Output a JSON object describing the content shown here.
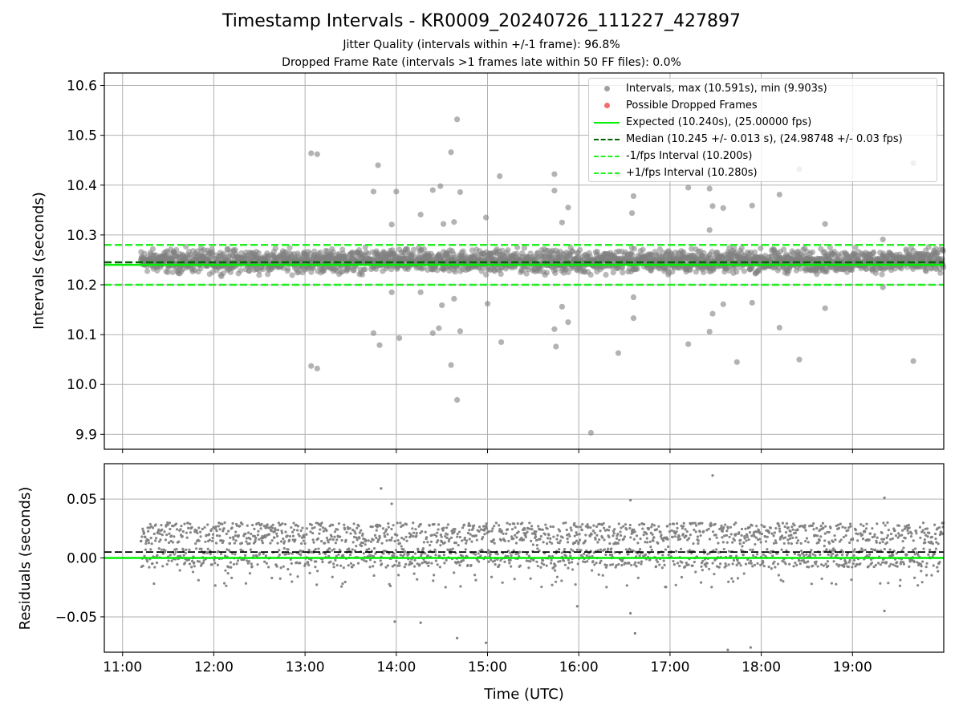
{
  "figure": {
    "title": "Timestamp Intervals - KR0009_20240726_111227_427897",
    "subtitle_1": "Jitter Quality (intervals within +/-1 frame): 96.8%",
    "subtitle_2": "Dropped Frame Rate (intervals >1 frames late within 50 FF files): 0.0%"
  },
  "legend": {
    "intervals": "Intervals, max (10.591s), min (9.903s)",
    "dropped": "Possible Dropped Frames",
    "expected": "Expected (10.240s), (25.00000 fps)",
    "median": "Median (10.245 +/- 0.013 s), (24.98748 +/- 0.03 fps)",
    "minus_fps": "-1/fps Interval (10.200s)",
    "plus_fps": "+1/fps Interval (10.280s)"
  },
  "colors": {
    "points": "#808080",
    "dropped": "#ff4d4d",
    "expected": "#00ee00",
    "median": "#006400",
    "fps_band": "#22ee22",
    "grid": "#b0b0b0"
  },
  "chart_data": [
    {
      "type": "scatter",
      "ylabel": "Intervals (seconds)",
      "xlim": [
        "10:48",
        "20:00"
      ],
      "ylim": [
        9.87,
        10.625
      ],
      "yticks": [
        9.9,
        10.0,
        10.1,
        10.2,
        10.3,
        10.4,
        10.5,
        10.6
      ],
      "ytick_labels": [
        "9.9",
        "10.0",
        "10.1",
        "10.2",
        "10.3",
        "10.4",
        "10.5",
        "10.6"
      ],
      "xticks": [
        "11:00",
        "12:00",
        "13:00",
        "14:00",
        "15:00",
        "16:00",
        "17:00",
        "18:00",
        "19:00"
      ],
      "grid": true,
      "legend_position": "top-right",
      "x_start": "11:12",
      "x_end": "20:00",
      "bulk_range": [
        10.215,
        10.28
      ],
      "reference_lines": {
        "expected": 10.24,
        "median": 10.245,
        "minus_1_fps": 10.2,
        "plus_1_fps": 10.28
      },
      "stats": {
        "max": 10.591,
        "min": 9.903,
        "median": 10.245,
        "std": 0.013
      },
      "outliers": [
        {
          "t": "13:04",
          "y": 10.464
        },
        {
          "t": "13:08",
          "y": 10.462
        },
        {
          "t": "13:04",
          "y": 10.037
        },
        {
          "t": "13:08",
          "y": 10.032
        },
        {
          "t": "13:45",
          "y": 10.387
        },
        {
          "t": "13:48",
          "y": 10.44
        },
        {
          "t": "13:45",
          "y": 10.103
        },
        {
          "t": "13:49",
          "y": 10.079
        },
        {
          "t": "13:57",
          "y": 10.321
        },
        {
          "t": "14:00",
          "y": 10.387
        },
        {
          "t": "14:02",
          "y": 10.093
        },
        {
          "t": "13:57",
          "y": 10.185
        },
        {
          "t": "14:16",
          "y": 10.341
        },
        {
          "t": "14:16",
          "y": 10.185
        },
        {
          "t": "14:24",
          "y": 10.39
        },
        {
          "t": "14:29",
          "y": 10.398
        },
        {
          "t": "14:24",
          "y": 10.103
        },
        {
          "t": "14:28",
          "y": 10.113
        },
        {
          "t": "14:30",
          "y": 10.159
        },
        {
          "t": "14:31",
          "y": 10.322
        },
        {
          "t": "14:36",
          "y": 10.466
        },
        {
          "t": "14:38",
          "y": 10.326
        },
        {
          "t": "14:38",
          "y": 10.172
        },
        {
          "t": "14:40",
          "y": 10.532
        },
        {
          "t": "14:40",
          "y": 9.969
        },
        {
          "t": "14:36",
          "y": 10.039
        },
        {
          "t": "14:42",
          "y": 10.386
        },
        {
          "t": "14:42",
          "y": 10.107
        },
        {
          "t": "14:59",
          "y": 10.335
        },
        {
          "t": "15:00",
          "y": 10.162
        },
        {
          "t": "15:08",
          "y": 10.418
        },
        {
          "t": "15:09",
          "y": 10.085
        },
        {
          "t": "15:44",
          "y": 10.422
        },
        {
          "t": "15:44",
          "y": 10.389
        },
        {
          "t": "15:44",
          "y": 10.111
        },
        {
          "t": "15:45",
          "y": 10.076
        },
        {
          "t": "15:49",
          "y": 10.325
        },
        {
          "t": "15:49",
          "y": 10.156
        },
        {
          "t": "15:53",
          "y": 10.355
        },
        {
          "t": "15:53",
          "y": 10.125
        },
        {
          "t": "16:08",
          "y": 9.903
        },
        {
          "t": "16:26",
          "y": 10.063
        },
        {
          "t": "16:26",
          "y": 10.422
        },
        {
          "t": "16:35",
          "y": 10.344
        },
        {
          "t": "16:36",
          "y": 10.378
        },
        {
          "t": "16:36",
          "y": 10.175
        },
        {
          "t": "16:36",
          "y": 10.133
        },
        {
          "t": "17:12",
          "y": 10.395
        },
        {
          "t": "17:12",
          "y": 10.081
        },
        {
          "t": "17:26",
          "y": 10.393
        },
        {
          "t": "17:26",
          "y": 10.31
        },
        {
          "t": "17:26",
          "y": 10.106
        },
        {
          "t": "17:28",
          "y": 10.358
        },
        {
          "t": "17:28",
          "y": 10.142
        },
        {
          "t": "17:35",
          "y": 10.354
        },
        {
          "t": "17:35",
          "y": 10.161
        },
        {
          "t": "17:44",
          "y": 10.045
        },
        {
          "t": "17:54",
          "y": 10.359
        },
        {
          "t": "17:54",
          "y": 10.164
        },
        {
          "t": "18:12",
          "y": 10.381
        },
        {
          "t": "18:12",
          "y": 10.114
        },
        {
          "t": "18:25",
          "y": 10.432
        },
        {
          "t": "18:25",
          "y": 10.05
        },
        {
          "t": "18:42",
          "y": 10.322
        },
        {
          "t": "18:42",
          "y": 10.153
        },
        {
          "t": "19:20",
          "y": 10.291
        },
        {
          "t": "19:20",
          "y": 10.195
        },
        {
          "t": "19:40",
          "y": 10.444
        },
        {
          "t": "19:40",
          "y": 10.047
        }
      ]
    },
    {
      "type": "scatter",
      "xlabel": "Time (UTC)",
      "ylabel": "Residuals (seconds)",
      "xlim": [
        "10:48",
        "20:00"
      ],
      "ylim": [
        -0.08,
        0.08
      ],
      "yticks": [
        -0.05,
        0.0,
        0.05
      ],
      "ytick_labels": [
        "−0.05",
        "0.00",
        "0.05"
      ],
      "xticks": [
        "11:00",
        "12:00",
        "13:00",
        "14:00",
        "15:00",
        "16:00",
        "17:00",
        "18:00",
        "19:00"
      ],
      "xtick_labels": [
        "11:00",
        "12:00",
        "13:00",
        "14:00",
        "15:00",
        "16:00",
        "17:00",
        "18:00",
        "19:00"
      ],
      "grid": true,
      "x_start": "11:12",
      "x_end": "20:00",
      "bulk_range": [
        -0.025,
        0.03
      ],
      "reference_lines": {
        "zero": 0.0,
        "median_offset": 0.005
      },
      "outliers": [
        {
          "t": "13:50",
          "y": 0.059
        },
        {
          "t": "13:57",
          "y": 0.046
        },
        {
          "t": "13:59",
          "y": -0.054
        },
        {
          "t": "14:16",
          "y": -0.055
        },
        {
          "t": "14:40",
          "y": -0.068
        },
        {
          "t": "14:59",
          "y": -0.072
        },
        {
          "t": "15:59",
          "y": -0.041
        },
        {
          "t": "16:34",
          "y": -0.047
        },
        {
          "t": "16:37",
          "y": -0.064
        },
        {
          "t": "16:34",
          "y": 0.049
        },
        {
          "t": "17:28",
          "y": 0.07
        },
        {
          "t": "17:38",
          "y": -0.078
        },
        {
          "t": "17:53",
          "y": -0.076
        },
        {
          "t": "19:21",
          "y": 0.051
        },
        {
          "t": "19:21",
          "y": -0.045
        }
      ]
    }
  ]
}
